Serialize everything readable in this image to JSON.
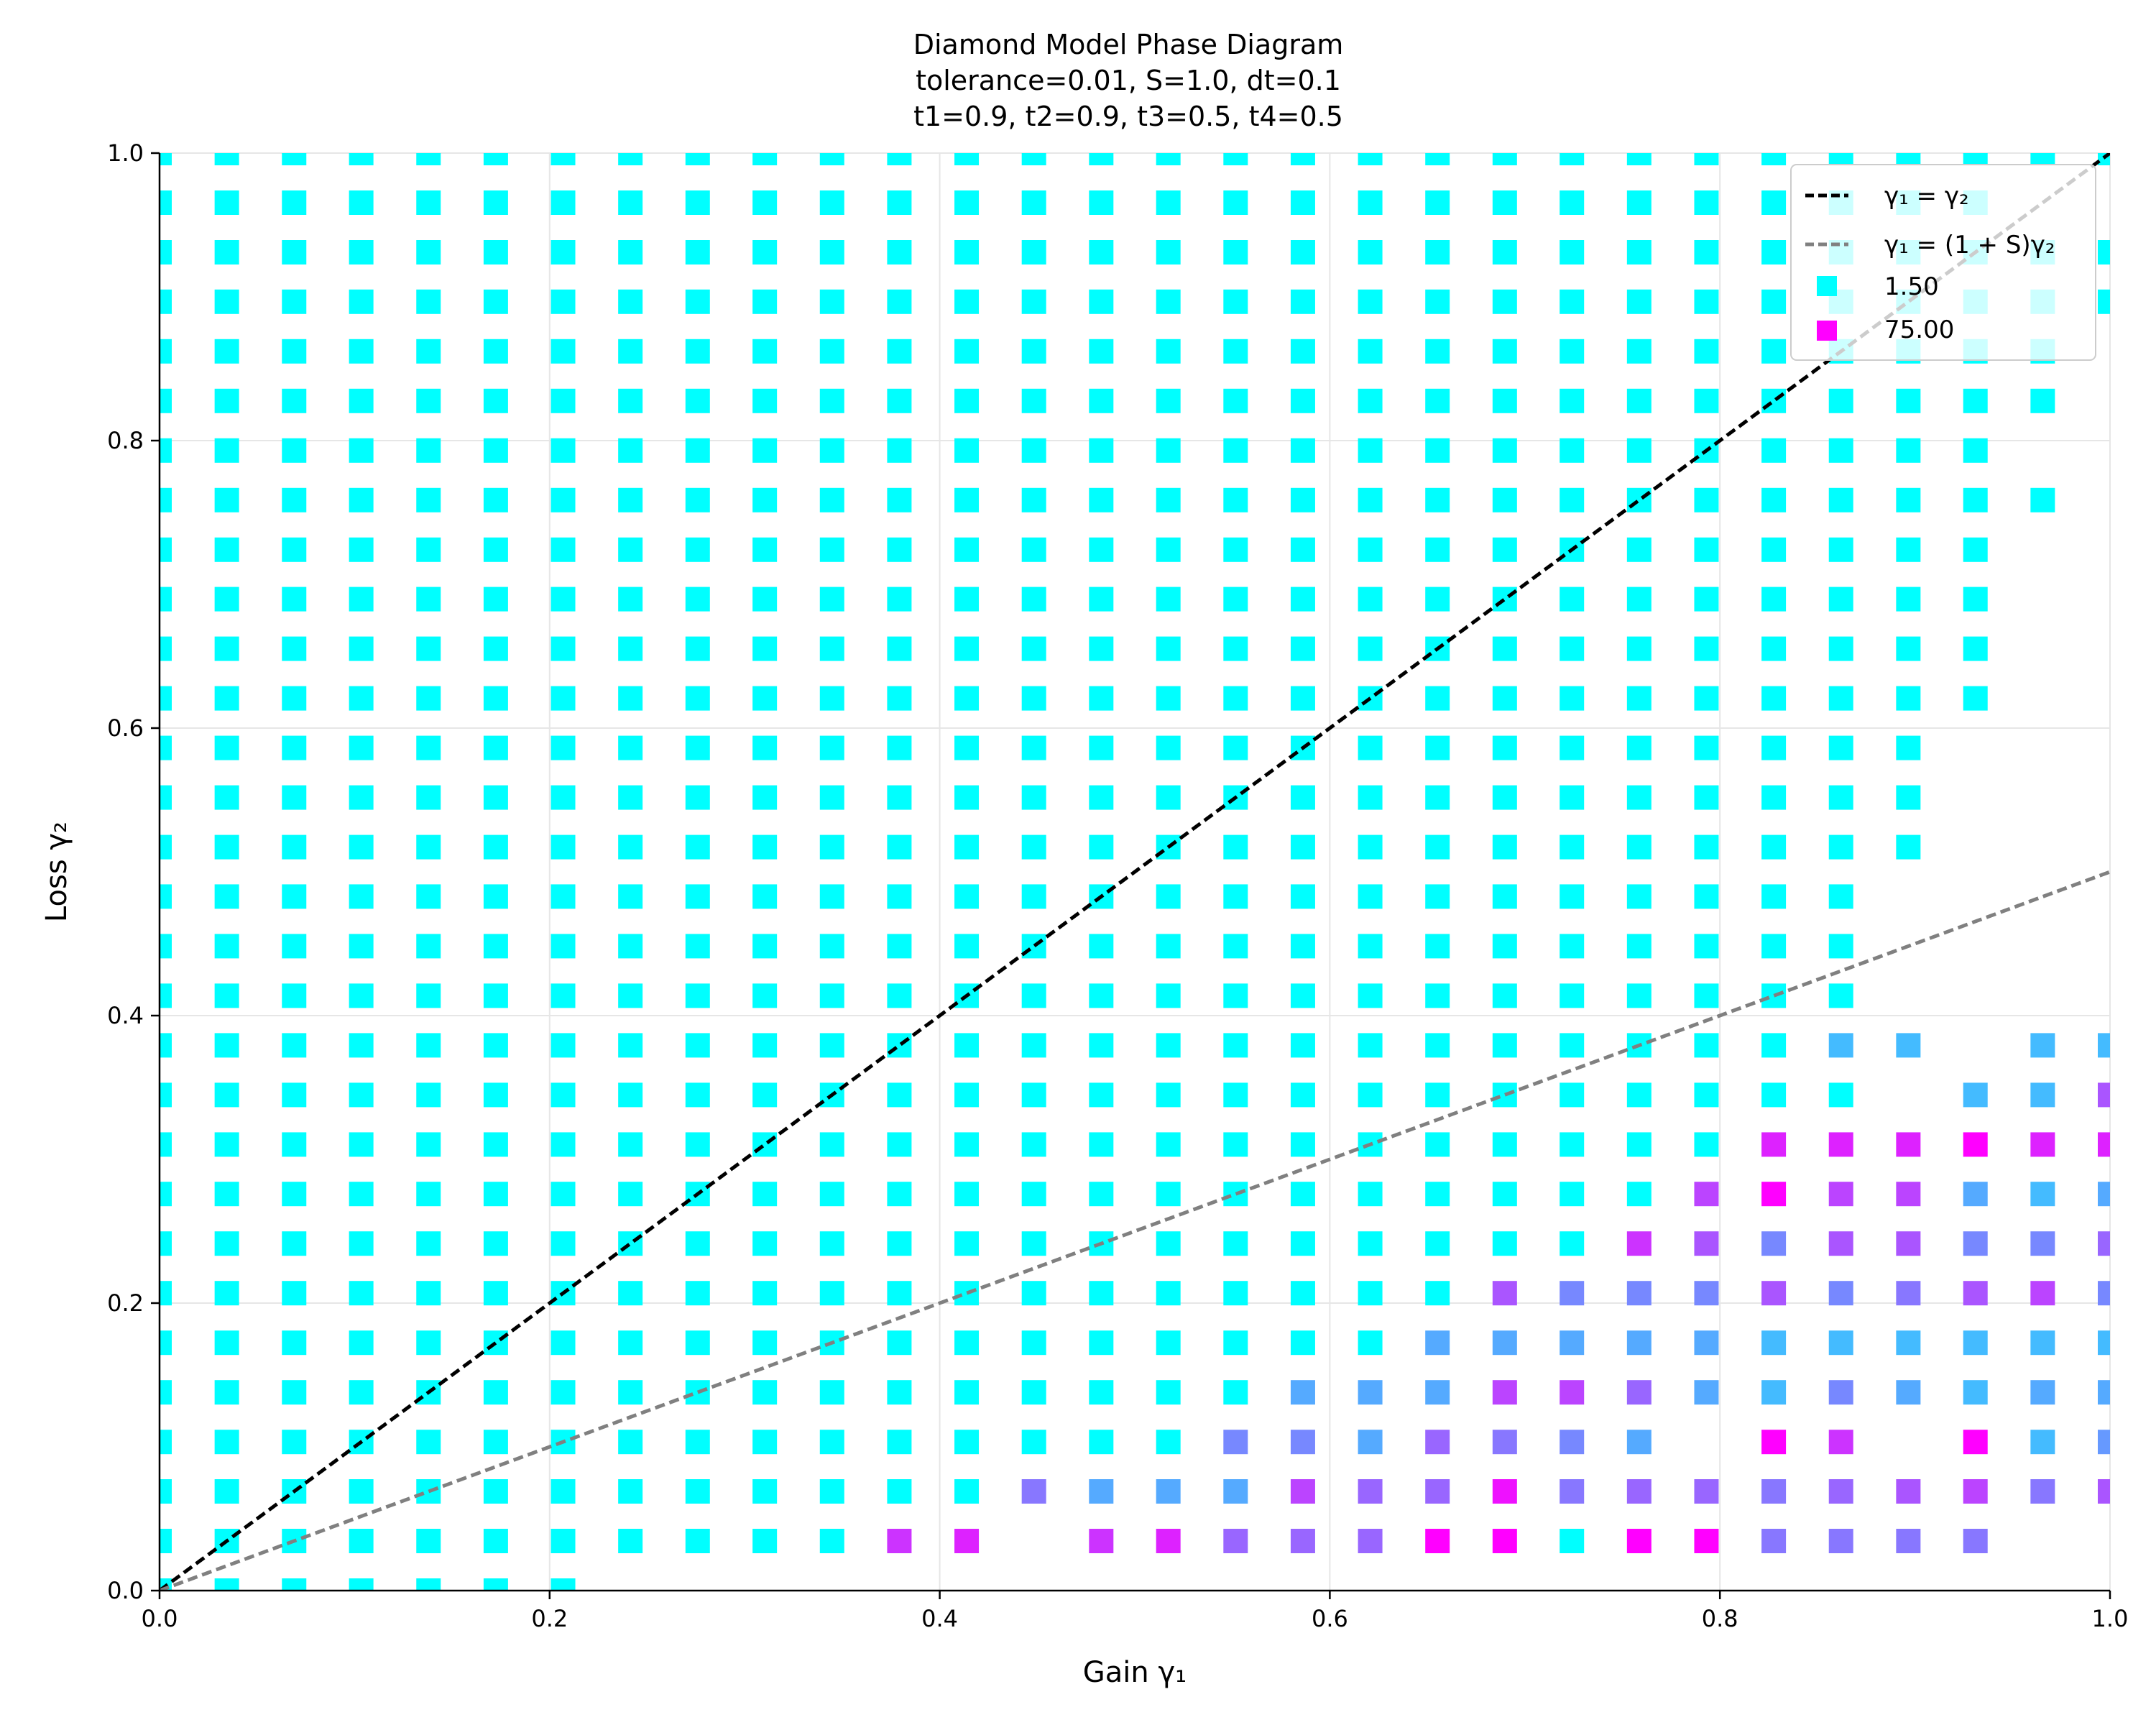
{
  "chart_data": {
    "type": "scatter",
    "title_lines": [
      "Diamond Model Phase Diagram",
      "tolerance=0.01, S=1.0, dt=0.1",
      "t1=0.9, t2=0.9, t3=0.5, t4=0.5"
    ],
    "xlabel": "Gain γ₁",
    "ylabel": "Loss γ₂",
    "xlim": [
      0,
      1
    ],
    "ylim": [
      0,
      1
    ],
    "x_ticks": [
      "0.0",
      "0.2",
      "0.4",
      "0.6",
      "0.8",
      "1.0"
    ],
    "y_ticks": [
      "0.0",
      "0.2",
      "0.4",
      "0.6",
      "0.8",
      "1.0"
    ],
    "grid": true,
    "legend_position": "top-right",
    "lines": [
      {
        "label": "γ₁ = γ₂",
        "x": [
          0,
          1
        ],
        "y": [
          0,
          1
        ],
        "color": "#000000",
        "style": "dashed"
      },
      {
        "label": "γ₁ = (1 + S)γ₂",
        "x": [
          0,
          1
        ],
        "y": [
          0,
          0.5
        ],
        "color": "#808080",
        "style": "dashed"
      }
    ],
    "colormap": {
      "name": "cool",
      "low": "#00ffff",
      "high": "#ff00ff"
    },
    "legend_markers": [
      {
        "label": "1.50",
        "color": "#00ffff"
      },
      {
        "label": "75.00",
        "color": "#ff00ff"
      }
    ],
    "grid_x_values": [
      0.0,
      0.0345,
      0.069,
      0.1034,
      0.1379,
      0.1724,
      0.2069,
      0.2414,
      0.2759,
      0.3103,
      0.3448,
      0.3793,
      0.4138,
      0.4483,
      0.4828,
      0.5172,
      0.5517,
      0.5862,
      0.6207,
      0.6552,
      0.6897,
      0.7241,
      0.7586,
      0.7931,
      0.8276,
      0.8621,
      0.8966,
      0.931,
      0.9655,
      1.0
    ],
    "grid_y_values": [
      0.0,
      0.0345,
      0.069,
      0.1034,
      0.1379,
      0.1724,
      0.2069,
      0.2414,
      0.2759,
      0.3103,
      0.3448,
      0.3793,
      0.4138,
      0.4483,
      0.4828,
      0.5172,
      0.5517,
      0.5862,
      0.6207,
      0.6552,
      0.6897,
      0.7241,
      0.7586,
      0.7931,
      0.8276,
      0.8621,
      0.8966,
      0.931,
      0.9655,
      1.0
    ],
    "points_rows": [
      {
        "y": 1.0,
        "x_from": 0.0,
        "x_to": 1.0
      },
      {
        "y": 0.9655,
        "x_from": 0.0,
        "x_to": 0.931
      },
      {
        "y": 0.931,
        "x_from": 0.0,
        "x_to": 1.0
      },
      {
        "y": 0.8966,
        "x_from": 0.0,
        "x_to": 1.0
      },
      {
        "y": 0.8621,
        "x_from": 0.0,
        "x_to": 0.9655
      },
      {
        "y": 0.8276,
        "x_from": 0.0,
        "x_to": 0.9655
      },
      {
        "y": 0.7931,
        "x_from": 0.0,
        "x_to": 0.931
      },
      {
        "y": 0.7586,
        "x_from": 0.0,
        "x_to": 0.9655
      },
      {
        "y": 0.7241,
        "x_from": 0.0,
        "x_to": 0.931
      },
      {
        "y": 0.6897,
        "x_from": 0.0,
        "x_to": 0.931
      },
      {
        "y": 0.6552,
        "x_from": 0.0,
        "x_to": 0.931
      },
      {
        "y": 0.6207,
        "x_from": 0.0,
        "x_to": 0.931
      },
      {
        "y": 0.5862,
        "x_from": 0.0,
        "x_to": 0.8966
      },
      {
        "y": 0.5517,
        "x_from": 0.0,
        "x_to": 0.8966
      },
      {
        "y": 0.5172,
        "x_from": 0.0,
        "x_to": 0.8966
      },
      {
        "y": 0.4828,
        "x_from": 0.0,
        "x_to": 0.8621
      },
      {
        "y": 0.4483,
        "x_from": 0.0,
        "x_to": 0.8621
      },
      {
        "y": 0.4138,
        "x_from": 0.0,
        "x_to": 0.8621
      },
      {
        "y": 0.3793,
        "x_from": 0.0,
        "x_to": 1.0
      },
      {
        "y": 0.3448,
        "x_from": 0.0,
        "x_to": 1.0
      },
      {
        "y": 0.3103,
        "x_from": 0.0,
        "x_to": 1.0
      },
      {
        "y": 0.2759,
        "x_from": 0.0,
        "x_to": 1.0
      },
      {
        "y": 0.2414,
        "x_from": 0.0,
        "x_to": 1.0
      },
      {
        "y": 0.2069,
        "x_from": 0.0,
        "x_to": 1.0
      },
      {
        "y": 0.1724,
        "x_from": 0.0,
        "x_to": 1.0
      },
      {
        "y": 0.1379,
        "x_from": 0.0,
        "x_to": 1.0
      },
      {
        "y": 0.1034,
        "x_from": 0.0,
        "x_to": 1.0
      },
      {
        "y": 0.069,
        "x_from": 0.0,
        "x_to": 1.0
      },
      {
        "y": 0.0345,
        "x_from": 0.0,
        "x_to": 0.931
      },
      {
        "y": 0.0,
        "x_from": 0.0,
        "x_to": 0.2069
      }
    ],
    "points_missing": [
      {
        "x": 0.4483,
        "y": 0.0345
      },
      {
        "x": 0.8966,
        "y": 0.1034
      },
      {
        "x": 0.8966,
        "y": 0.3448
      },
      {
        "x": 0.931,
        "y": 0.3793
      },
      {
        "x": 0.7931,
        "y": 0.1034
      }
    ],
    "points_colored": [
      {
        "x": 0.3793,
        "y": 0.0345,
        "color": "#cc33ff"
      },
      {
        "x": 0.4138,
        "y": 0.0345,
        "color": "#dd22ff"
      },
      {
        "x": 0.4828,
        "y": 0.0345,
        "color": "#cc33ff"
      },
      {
        "x": 0.5172,
        "y": 0.0345,
        "color": "#dd22ff"
      },
      {
        "x": 0.5517,
        "y": 0.0345,
        "color": "#9966ff"
      },
      {
        "x": 0.5862,
        "y": 0.0345,
        "color": "#9966ff"
      },
      {
        "x": 0.6207,
        "y": 0.0345,
        "color": "#9966ff"
      },
      {
        "x": 0.6552,
        "y": 0.0345,
        "color": "#ff00ff"
      },
      {
        "x": 0.6897,
        "y": 0.0345,
        "color": "#ff00ff"
      },
      {
        "x": 0.7586,
        "y": 0.0345,
        "color": "#ff00ff"
      },
      {
        "x": 0.7931,
        "y": 0.0345,
        "color": "#ff00ff"
      },
      {
        "x": 0.8276,
        "y": 0.0345,
        "color": "#8877ff"
      },
      {
        "x": 0.8621,
        "y": 0.0345,
        "color": "#8877ff"
      },
      {
        "x": 0.8966,
        "y": 0.0345,
        "color": "#8877ff"
      },
      {
        "x": 0.931,
        "y": 0.0345,
        "color": "#8877ff"
      },
      {
        "x": 0.4483,
        "y": 0.069,
        "color": "#8877ff"
      },
      {
        "x": 0.4828,
        "y": 0.069,
        "color": "#55aaff"
      },
      {
        "x": 0.5172,
        "y": 0.069,
        "color": "#55aaff"
      },
      {
        "x": 0.5517,
        "y": 0.069,
        "color": "#55aaff"
      },
      {
        "x": 0.5862,
        "y": 0.069,
        "color": "#bb44ff"
      },
      {
        "x": 0.6207,
        "y": 0.069,
        "color": "#9966ff"
      },
      {
        "x": 0.6552,
        "y": 0.069,
        "color": "#9966ff"
      },
      {
        "x": 0.6897,
        "y": 0.069,
        "color": "#ee11ff"
      },
      {
        "x": 0.7241,
        "y": 0.069,
        "color": "#8877ff"
      },
      {
        "x": 0.7586,
        "y": 0.069,
        "color": "#9966ff"
      },
      {
        "x": 0.7931,
        "y": 0.069,
        "color": "#9966ff"
      },
      {
        "x": 0.8276,
        "y": 0.069,
        "color": "#8877ff"
      },
      {
        "x": 0.8621,
        "y": 0.069,
        "color": "#9966ff"
      },
      {
        "x": 0.8966,
        "y": 0.069,
        "color": "#aa55ff"
      },
      {
        "x": 0.931,
        "y": 0.069,
        "color": "#bb44ff"
      },
      {
        "x": 0.9655,
        "y": 0.069,
        "color": "#8877ff"
      },
      {
        "x": 1.0,
        "y": 0.069,
        "color": "#aa55ff"
      },
      {
        "x": 0.5517,
        "y": 0.1034,
        "color": "#7788ff"
      },
      {
        "x": 0.5862,
        "y": 0.1034,
        "color": "#7788ff"
      },
      {
        "x": 0.6207,
        "y": 0.1034,
        "color": "#55aaff"
      },
      {
        "x": 0.6552,
        "y": 0.1034,
        "color": "#9966ff"
      },
      {
        "x": 0.6897,
        "y": 0.1034,
        "color": "#8877ff"
      },
      {
        "x": 0.7241,
        "y": 0.1034,
        "color": "#7788ff"
      },
      {
        "x": 0.7586,
        "y": 0.1034,
        "color": "#55aaff"
      },
      {
        "x": 0.8276,
        "y": 0.1034,
        "color": "#ff00ff"
      },
      {
        "x": 0.8621,
        "y": 0.1034,
        "color": "#cc33ff"
      },
      {
        "x": 0.931,
        "y": 0.1034,
        "color": "#ff00ff"
      },
      {
        "x": 0.9655,
        "y": 0.1034,
        "color": "#44bbff"
      },
      {
        "x": 1.0,
        "y": 0.1034,
        "color": "#6699ff"
      },
      {
        "x": 0.5862,
        "y": 0.1379,
        "color": "#55aaff"
      },
      {
        "x": 0.6207,
        "y": 0.1379,
        "color": "#55aaff"
      },
      {
        "x": 0.6552,
        "y": 0.1379,
        "color": "#55aaff"
      },
      {
        "x": 0.6897,
        "y": 0.1379,
        "color": "#bb44ff"
      },
      {
        "x": 0.7241,
        "y": 0.1379,
        "color": "#bb44ff"
      },
      {
        "x": 0.7586,
        "y": 0.1379,
        "color": "#9966ff"
      },
      {
        "x": 0.7931,
        "y": 0.1379,
        "color": "#55aaff"
      },
      {
        "x": 0.8276,
        "y": 0.1379,
        "color": "#44bbff"
      },
      {
        "x": 0.8621,
        "y": 0.1379,
        "color": "#7788ff"
      },
      {
        "x": 0.8966,
        "y": 0.1379,
        "color": "#55aaff"
      },
      {
        "x": 0.931,
        "y": 0.1379,
        "color": "#44bbff"
      },
      {
        "x": 0.9655,
        "y": 0.1379,
        "color": "#55aaff"
      },
      {
        "x": 1.0,
        "y": 0.1379,
        "color": "#55aaff"
      },
      {
        "x": 0.6552,
        "y": 0.1724,
        "color": "#55aaff"
      },
      {
        "x": 0.6897,
        "y": 0.1724,
        "color": "#55aaff"
      },
      {
        "x": 0.7241,
        "y": 0.1724,
        "color": "#55aaff"
      },
      {
        "x": 0.7586,
        "y": 0.1724,
        "color": "#55aaff"
      },
      {
        "x": 0.7931,
        "y": 0.1724,
        "color": "#55aaff"
      },
      {
        "x": 0.8276,
        "y": 0.1724,
        "color": "#44bbff"
      },
      {
        "x": 0.8621,
        "y": 0.1724,
        "color": "#44bbff"
      },
      {
        "x": 0.8966,
        "y": 0.1724,
        "color": "#44bbff"
      },
      {
        "x": 0.931,
        "y": 0.1724,
        "color": "#44bbff"
      },
      {
        "x": 0.9655,
        "y": 0.1724,
        "color": "#44bbff"
      },
      {
        "x": 1.0,
        "y": 0.1724,
        "color": "#44bbff"
      },
      {
        "x": 0.6897,
        "y": 0.2069,
        "color": "#aa55ff"
      },
      {
        "x": 0.7241,
        "y": 0.2069,
        "color": "#7788ff"
      },
      {
        "x": 0.7586,
        "y": 0.2069,
        "color": "#7788ff"
      },
      {
        "x": 0.7931,
        "y": 0.2069,
        "color": "#7788ff"
      },
      {
        "x": 0.8276,
        "y": 0.2069,
        "color": "#aa55ff"
      },
      {
        "x": 0.8621,
        "y": 0.2069,
        "color": "#7788ff"
      },
      {
        "x": 0.8966,
        "y": 0.2069,
        "color": "#8877ff"
      },
      {
        "x": 0.931,
        "y": 0.2069,
        "color": "#aa55ff"
      },
      {
        "x": 0.9655,
        "y": 0.2069,
        "color": "#bb44ff"
      },
      {
        "x": 1.0,
        "y": 0.2069,
        "color": "#7788ff"
      },
      {
        "x": 0.7586,
        "y": 0.2414,
        "color": "#cc33ff"
      },
      {
        "x": 0.7931,
        "y": 0.2414,
        "color": "#aa55ff"
      },
      {
        "x": 0.8276,
        "y": 0.2414,
        "color": "#7788ff"
      },
      {
        "x": 0.8621,
        "y": 0.2414,
        "color": "#aa55ff"
      },
      {
        "x": 0.8966,
        "y": 0.2414,
        "color": "#aa55ff"
      },
      {
        "x": 0.931,
        "y": 0.2414,
        "color": "#7788ff"
      },
      {
        "x": 0.9655,
        "y": 0.2414,
        "color": "#7788ff"
      },
      {
        "x": 1.0,
        "y": 0.2414,
        "color": "#9966ff"
      },
      {
        "x": 0.7931,
        "y": 0.2759,
        "color": "#bb44ff"
      },
      {
        "x": 0.8276,
        "y": 0.2759,
        "color": "#ff00ff"
      },
      {
        "x": 0.8621,
        "y": 0.2759,
        "color": "#bb44ff"
      },
      {
        "x": 0.8966,
        "y": 0.2759,
        "color": "#bb44ff"
      },
      {
        "x": 0.931,
        "y": 0.2759,
        "color": "#55aaff"
      },
      {
        "x": 0.9655,
        "y": 0.2759,
        "color": "#44bbff"
      },
      {
        "x": 1.0,
        "y": 0.2759,
        "color": "#55aaff"
      },
      {
        "x": 0.8276,
        "y": 0.3103,
        "color": "#dd22ff"
      },
      {
        "x": 0.8621,
        "y": 0.3103,
        "color": "#dd22ff"
      },
      {
        "x": 0.8966,
        "y": 0.3103,
        "color": "#dd22ff"
      },
      {
        "x": 0.931,
        "y": 0.3103,
        "color": "#ff00ff"
      },
      {
        "x": 0.9655,
        "y": 0.3103,
        "color": "#dd22ff"
      },
      {
        "x": 1.0,
        "y": 0.3103,
        "color": "#dd22ff"
      },
      {
        "x": 0.931,
        "y": 0.3448,
        "color": "#44bbff"
      },
      {
        "x": 0.9655,
        "y": 0.3448,
        "color": "#44bbff"
      },
      {
        "x": 1.0,
        "y": 0.3448,
        "color": "#aa55ff"
      },
      {
        "x": 0.8621,
        "y": 0.3793,
        "color": "#44bbff"
      },
      {
        "x": 0.8966,
        "y": 0.3793,
        "color": "#44bbff"
      },
      {
        "x": 0.9655,
        "y": 0.3793,
        "color": "#44bbff"
      },
      {
        "x": 1.0,
        "y": 0.3793,
        "color": "#44bbff"
      }
    ]
  }
}
